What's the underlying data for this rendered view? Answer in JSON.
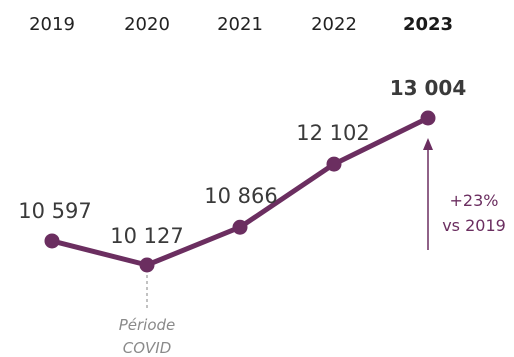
{
  "chart_data": {
    "type": "line",
    "categories": [
      "2019",
      "2020",
      "2021",
      "2022",
      "2023"
    ],
    "values": [
      10597,
      10127,
      10866,
      12102,
      13004
    ],
    "value_labels": [
      "10 597",
      "10 127",
      "10 866",
      "12 102",
      "13 004"
    ],
    "highlight_category": "2023",
    "series_color": "#6b2e60",
    "annotations": {
      "covid": {
        "category": "2020",
        "line1": "Période",
        "line2": "COVID"
      },
      "growth": {
        "line1": "+23%",
        "line2": "vs 2019",
        "color": "#6b2e60"
      }
    },
    "grid": false,
    "legend": "none"
  }
}
